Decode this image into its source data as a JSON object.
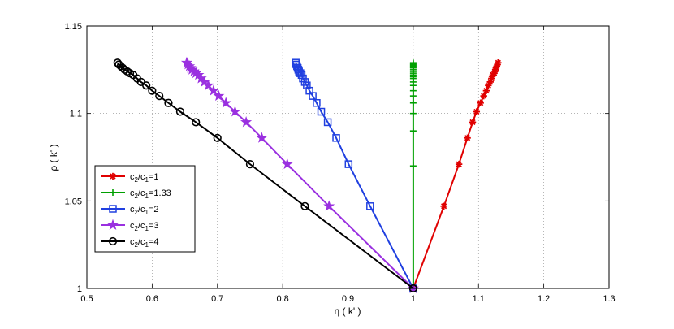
{
  "chart_data": {
    "type": "line",
    "title": "",
    "xlabel": "η ( k' )",
    "ylabel": "ρ ( k' )",
    "xlim": [
      0.5,
      1.3
    ],
    "ylim": [
      1.0,
      1.15
    ],
    "xticks": [
      0.5,
      0.6,
      0.7,
      0.8,
      0.9,
      1,
      1.1,
      1.2,
      1.3
    ],
    "xtick_labels": [
      "0.5",
      "0.6",
      "0.7",
      "0.8",
      "0.9",
      "1",
      "1.1",
      "1.2",
      "1.3"
    ],
    "yticks": [
      1.0,
      1.05,
      1.1,
      1.15
    ],
    "ytick_labels": [
      "1",
      "1.05",
      "1.1",
      "1.15"
    ],
    "grid": true,
    "legend_placement": "center-left",
    "series": [
      {
        "name": "c2/c1=1",
        "label_parts": [
          "c",
          "2",
          "/c",
          "1",
          "=1"
        ],
        "color": "#e00000",
        "marker": "asterisk",
        "x": [
          1.0,
          1.047,
          1.07,
          1.083,
          1.091,
          1.097,
          1.103,
          1.108,
          1.112,
          1.115,
          1.118,
          1.12,
          1.122,
          1.124,
          1.125,
          1.126,
          1.127,
          1.128,
          1.129,
          1.13
        ],
        "y": [
          1.0,
          1.047,
          1.071,
          1.086,
          1.095,
          1.101,
          1.106,
          1.11,
          1.113,
          1.116,
          1.118,
          1.12,
          1.122,
          1.123,
          1.124,
          1.125,
          1.126,
          1.127,
          1.128,
          1.129
        ]
      },
      {
        "name": "c2/c1=1.33",
        "label_parts": [
          "c",
          "2",
          "/c",
          "1",
          "=1.33"
        ],
        "color": "#00a000",
        "marker": "plus",
        "x": [
          1.0,
          1.0,
          1.0,
          1.0,
          1.0,
          1.0,
          1.0,
          1.0,
          1.0,
          1.0,
          1.0,
          1.0,
          1.0,
          1.0,
          1.0,
          1.0,
          1.0,
          1.0,
          1.0,
          1.0,
          1.0,
          1.0
        ],
        "y": [
          1.0,
          1.07,
          1.09,
          1.1,
          1.106,
          1.11,
          1.113,
          1.116,
          1.118,
          1.12,
          1.121,
          1.122,
          1.123,
          1.124,
          1.125,
          1.126,
          1.1265,
          1.127,
          1.1275,
          1.128,
          1.1285,
          1.129
        ]
      },
      {
        "name": "c2/c1=2",
        "label_parts": [
          "c",
          "2",
          "/c",
          "1",
          "=2"
        ],
        "color": "#2040e0",
        "marker": "square",
        "x": [
          1.0,
          0.934,
          0.901,
          0.882,
          0.869,
          0.859,
          0.852,
          0.846,
          0.841,
          0.837,
          0.834,
          0.831,
          0.829,
          0.827,
          0.825,
          0.824,
          0.823,
          0.822,
          0.821,
          0.82
        ],
        "y": [
          1.0,
          1.047,
          1.071,
          1.086,
          1.095,
          1.101,
          1.106,
          1.11,
          1.113,
          1.116,
          1.118,
          1.12,
          1.122,
          1.123,
          1.124,
          1.125,
          1.126,
          1.127,
          1.128,
          1.129
        ]
      },
      {
        "name": "c2/c1=3",
        "label_parts": [
          "c",
          "2",
          "/c",
          "1",
          "=3"
        ],
        "color": "#9a30e0",
        "marker": "star",
        "x": [
          1.0,
          0.871,
          0.807,
          0.768,
          0.744,
          0.727,
          0.713,
          0.702,
          0.694,
          0.686,
          0.68,
          0.675,
          0.671,
          0.667,
          0.664,
          0.661,
          0.659,
          0.657,
          0.655,
          0.653
        ],
        "y": [
          1.0,
          1.047,
          1.071,
          1.086,
          1.095,
          1.101,
          1.106,
          1.11,
          1.113,
          1.116,
          1.118,
          1.12,
          1.122,
          1.123,
          1.124,
          1.125,
          1.126,
          1.127,
          1.128,
          1.129
        ]
      },
      {
        "name": "c2/c1=4",
        "label_parts": [
          "c",
          "2",
          "/c",
          "1",
          "=4"
        ],
        "color": "#000000",
        "marker": "circle",
        "x": [
          1.0,
          0.834,
          0.75,
          0.7,
          0.667,
          0.643,
          0.625,
          0.611,
          0.6,
          0.591,
          0.583,
          0.577,
          0.571,
          0.566,
          0.562,
          0.558,
          0.555,
          0.552,
          0.549,
          0.547
        ],
        "y": [
          1.0,
          1.047,
          1.071,
          1.086,
          1.095,
          1.101,
          1.106,
          1.11,
          1.113,
          1.116,
          1.118,
          1.12,
          1.122,
          1.123,
          1.124,
          1.125,
          1.126,
          1.127,
          1.128,
          1.129
        ]
      }
    ]
  }
}
